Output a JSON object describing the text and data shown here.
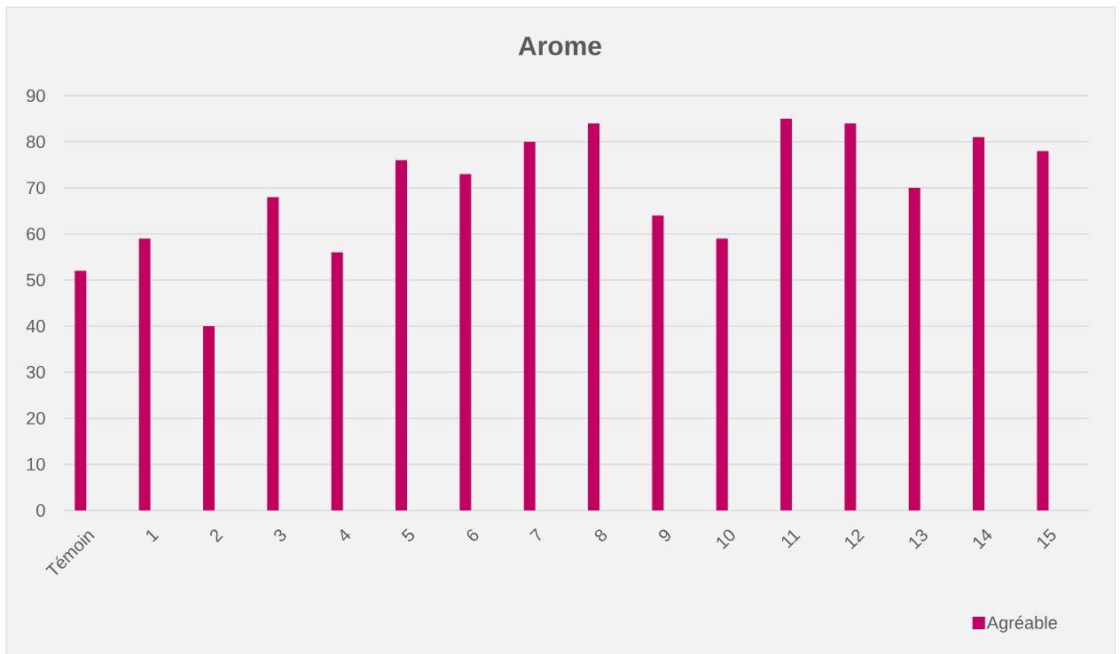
{
  "chart_data": {
    "type": "bar",
    "title": "Arome",
    "categories": [
      "Témoin",
      "1",
      "2",
      "3",
      "4",
      "5",
      "6",
      "7",
      "8",
      "9",
      "10",
      "11",
      "12",
      "13",
      "14",
      "15"
    ],
    "series": [
      {
        "name": "Agréable",
        "color": "#c2005f",
        "values": [
          52,
          59,
          40,
          68,
          56,
          76,
          73,
          80,
          84,
          64,
          59,
          85,
          84,
          70,
          81,
          78
        ]
      }
    ],
    "ylim": [
      0,
      90
    ],
    "yticks": [
      0,
      10,
      20,
      30,
      40,
      50,
      60,
      70,
      80,
      90
    ],
    "grid": "y",
    "legend": "bottom right"
  }
}
